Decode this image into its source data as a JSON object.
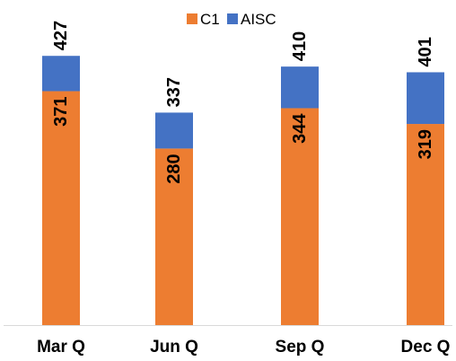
{
  "chart_data": {
    "type": "bar",
    "stacked": true,
    "categories": [
      "Mar Q",
      "Jun Q",
      "Sep Q",
      "Dec Q"
    ],
    "series": [
      {
        "name": "C1",
        "values": [
          371,
          280,
          344,
          319
        ],
        "color": "#ED7D31"
      },
      {
        "name": "AISC",
        "values": [
          56,
          57,
          66,
          82
        ],
        "color": "#4472C4"
      }
    ],
    "totals": [
      "427",
      "337",
      "410",
      "401"
    ],
    "inner_labels": [
      "371",
      "280",
      "344",
      "319"
    ],
    "ylim": [
      0,
      480
    ],
    "legend_position": "top",
    "grid": false
  }
}
